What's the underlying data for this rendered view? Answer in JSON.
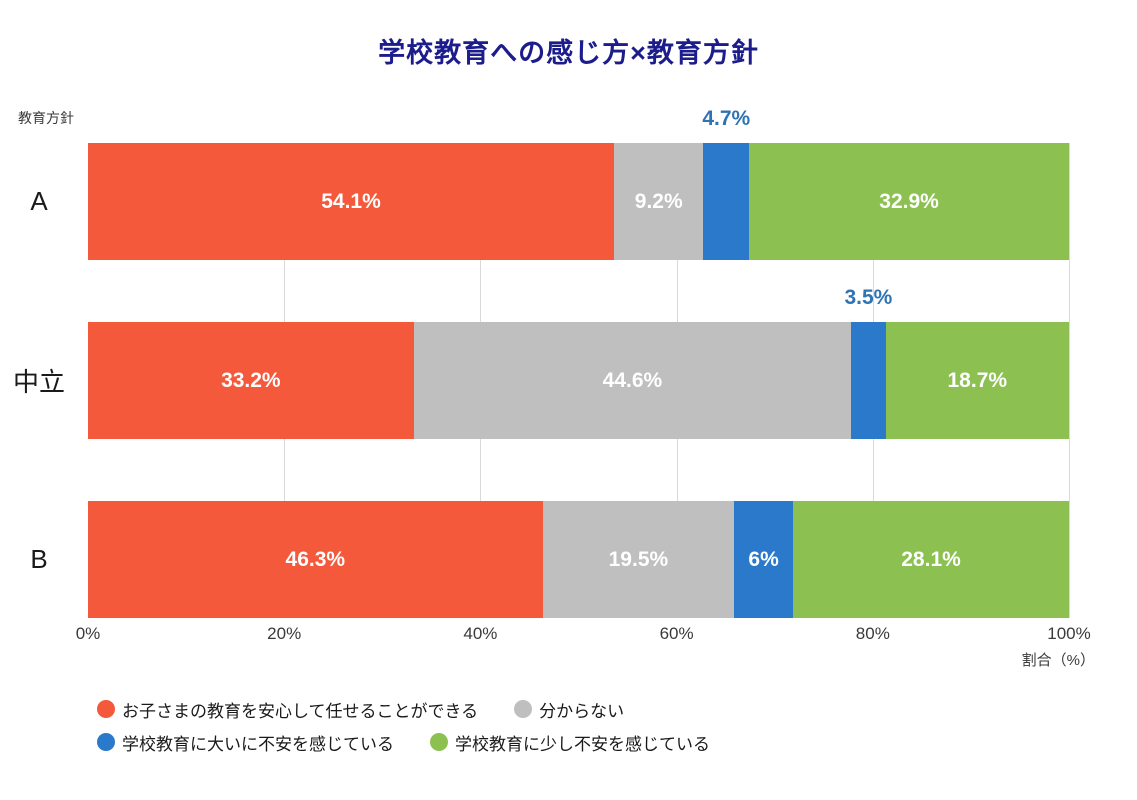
{
  "title": "学校教育への感じ方×教育方針",
  "colors": {
    "title": "#1C1C8C",
    "orange": "#F4593B",
    "gray": "#BFBFBF",
    "blue": "#2A79CB",
    "green": "#8CC152",
    "float_label_text": "#2E74B5",
    "gridline": "#D9D9D9",
    "tick_text": "#3A3A3A",
    "bar_value_text": "#FFFFFF"
  },
  "chart_data": {
    "type": "bar",
    "orientation": "horizontal",
    "stacked": true,
    "title": "学校教育への感じ方×教育方針",
    "y_axis_label": "教育方針",
    "x_axis_label": "割合（%）",
    "xlim": [
      0,
      100
    ],
    "x_ticks": [
      "0%",
      "20%",
      "40%",
      "60%",
      "80%",
      "100%"
    ],
    "gridlines_pct": [
      20,
      40,
      60,
      80,
      100
    ],
    "categories": [
      "A",
      "中立",
      "B"
    ],
    "series": [
      {
        "name": "お子さまの教育を安心して任せることができる",
        "color": "#F4593B",
        "values": [
          54.1,
          33.2,
          46.3
        ]
      },
      {
        "name": "分からない",
        "color": "#BFBFBF",
        "values": [
          9.2,
          44.6,
          19.5
        ]
      },
      {
        "name": "学校教育に大いに不安を感じている",
        "color": "#2A79CB",
        "values": [
          4.7,
          3.5,
          6
        ]
      },
      {
        "name": "学校教育に少し不安を感じている",
        "color": "#8CC152",
        "values": [
          32.9,
          18.7,
          28.1
        ]
      }
    ],
    "bars": [
      {
        "category": "A",
        "segments": [
          {
            "value": 54.1,
            "label": "54.1%",
            "color": "#F4593B",
            "label_position": "inside"
          },
          {
            "value": 9.2,
            "label": "9.2%",
            "color": "#BFBFBF",
            "label_position": "inside"
          },
          {
            "value": 4.7,
            "label": "4.7%",
            "color": "#2A79CB",
            "label_position": "above"
          },
          {
            "value": 32.9,
            "label": "32.9%",
            "color": "#8CC152",
            "label_position": "inside"
          }
        ]
      },
      {
        "category": "中立",
        "segments": [
          {
            "value": 33.2,
            "label": "33.2%",
            "color": "#F4593B",
            "label_position": "inside"
          },
          {
            "value": 44.6,
            "label": "44.6%",
            "color": "#BFBFBF",
            "label_position": "inside"
          },
          {
            "value": 3.5,
            "label": "3.5%",
            "color": "#2A79CB",
            "label_position": "above"
          },
          {
            "value": 18.7,
            "label": "18.7%",
            "color": "#8CC152",
            "label_position": "inside"
          }
        ]
      },
      {
        "category": "B",
        "segments": [
          {
            "value": 46.3,
            "label": "46.3%",
            "color": "#F4593B",
            "label_position": "inside"
          },
          {
            "value": 19.5,
            "label": "19.5%",
            "color": "#BFBFBF",
            "label_position": "inside"
          },
          {
            "value": 6,
            "label": "6%",
            "color": "#2A79CB",
            "label_position": "inside"
          },
          {
            "value": 28.1,
            "label": "28.1%",
            "color": "#8CC152",
            "label_position": "inside"
          }
        ]
      }
    ],
    "legend_rows": [
      [
        {
          "label": "お子さまの教育を安心して任せることができる",
          "color": "#F4593B"
        },
        {
          "label": "分からない",
          "color": "#BFBFBF"
        }
      ],
      [
        {
          "label": "学校教育に大いに不安を感じている",
          "color": "#2A79CB"
        },
        {
          "label": "学校教育に少し不安を感じている",
          "color": "#8CC152"
        }
      ]
    ]
  }
}
